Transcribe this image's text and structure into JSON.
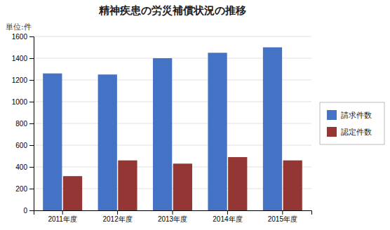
{
  "chart_data": {
    "type": "bar",
    "title": "精神疾患の労災補償状況の推移",
    "annotations": [
      "単位:件"
    ],
    "categories": [
      "2011年度",
      "2012年度",
      "2013年度",
      "2014年度",
      "2015年度"
    ],
    "series": [
      {
        "name": "請求件数",
        "color": "#4472C4",
        "values": [
          1260,
          1250,
          1400,
          1450,
          1500
        ]
      },
      {
        "name": "認定件数",
        "color": "#943634",
        "values": [
          315,
          460,
          430,
          490,
          460
        ]
      }
    ],
    "ylim": [
      0,
      1600
    ],
    "yticks": [
      0,
      200,
      400,
      600,
      800,
      1000,
      1200,
      1400,
      1600
    ],
    "grid": true,
    "legend": "right"
  }
}
